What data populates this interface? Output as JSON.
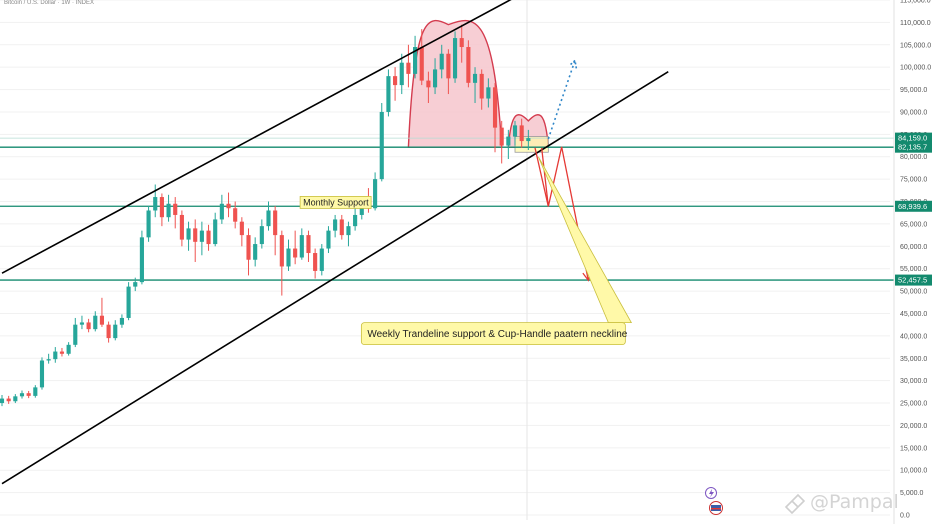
{
  "header": {
    "title": "Bitcoin / U.S. Dollar · 1W · INDEX"
  },
  "watermark": {
    "text": "@Pampal"
  },
  "colors": {
    "up": "#26a69a",
    "down": "#ef5350",
    "support_line": "#138a6e",
    "channel": "#000000",
    "cup_fill": "#f6c6cc",
    "cup_stroke": "#d43c4f",
    "projection_red": "#e53935",
    "projection_blue": "#2f86c8",
    "callout_fill": "#fff9a8",
    "callout_border": "#c9bf3d"
  },
  "chart_data": {
    "type": "candlestick",
    "ylim": [
      0,
      115000
    ],
    "x_range": [
      0,
      110
    ],
    "y_ticks": [
      {
        "value": 115000,
        "label": "115,000.0"
      },
      {
        "value": 110000,
        "label": "110,000.0"
      },
      {
        "value": 105000,
        "label": "105,000.0"
      },
      {
        "value": 100000,
        "label": "100,000.0"
      },
      {
        "value": 95000,
        "label": "95,000.0"
      },
      {
        "value": 90000,
        "label": "90,000.0"
      },
      {
        "value": 85000,
        "label": "85,000.0"
      },
      {
        "value": 80000,
        "label": "80,000.0"
      },
      {
        "value": 75000,
        "label": "75,000.0"
      },
      {
        "value": 70000,
        "label": "70,000.0"
      },
      {
        "value": 65000,
        "label": "65,000.0"
      },
      {
        "value": 60000,
        "label": "60,000.0"
      },
      {
        "value": 55000,
        "label": "55,000.0"
      },
      {
        "value": 50000,
        "label": "50,000.0"
      },
      {
        "value": 45000,
        "label": "45,000.0"
      },
      {
        "value": 40000,
        "label": "40,000.0"
      },
      {
        "value": 35000,
        "label": "35,000.0"
      },
      {
        "value": 30000,
        "label": "30,000.0"
      },
      {
        "value": 25000,
        "label": "25,000.0"
      },
      {
        "value": 20000,
        "label": "20,000.0"
      },
      {
        "value": 15000,
        "label": "15,000.0"
      },
      {
        "value": 10000,
        "label": "10,000.0"
      },
      {
        "value": 5000,
        "label": "5,000.0"
      },
      {
        "value": 0,
        "label": "0.0"
      }
    ],
    "price_tags": [
      {
        "value": 84159.0,
        "label": "84,159.0"
      },
      {
        "value": 82135.7,
        "label": "82,135.7"
      },
      {
        "value": 68939.6,
        "label": "68,939.6"
      },
      {
        "value": 52457.5,
        "label": "52,457.5"
      }
    ],
    "support_lines": [
      82135.7,
      68939.6,
      52457.5
    ],
    "channel_lines": [
      {
        "name": "upper-channel",
        "points": [
          [
            0,
            54000
          ],
          [
            80,
            118000
          ]
        ]
      },
      {
        "name": "lower-channel",
        "points": [
          [
            0,
            7000
          ],
          [
            100,
            99000
          ]
        ]
      }
    ],
    "candles": [
      {
        "x": 0,
        "open": 25000,
        "close": 26000,
        "high": 26800,
        "low": 24300
      },
      {
        "x": 1,
        "open": 26000,
        "close": 25400,
        "high": 26600,
        "low": 24800
      },
      {
        "x": 2,
        "open": 25400,
        "close": 26500,
        "high": 27000,
        "low": 25000
      },
      {
        "x": 3,
        "open": 26500,
        "close": 27200,
        "high": 27800,
        "low": 26000
      },
      {
        "x": 4,
        "open": 27200,
        "close": 26600,
        "high": 27700,
        "low": 26100
      },
      {
        "x": 5,
        "open": 26600,
        "close": 28500,
        "high": 29000,
        "low": 26200
      },
      {
        "x": 6,
        "open": 28500,
        "close": 34500,
        "high": 35200,
        "low": 28000
      },
      {
        "x": 7,
        "open": 34500,
        "close": 34800,
        "high": 36000,
        "low": 33800
      },
      {
        "x": 8,
        "open": 34800,
        "close": 36500,
        "high": 37500,
        "low": 34000
      },
      {
        "x": 9,
        "open": 36500,
        "close": 36000,
        "high": 37300,
        "low": 35400
      },
      {
        "x": 10,
        "open": 36000,
        "close": 38000,
        "high": 38600,
        "low": 35600
      },
      {
        "x": 11,
        "open": 38000,
        "close": 42500,
        "high": 44000,
        "low": 37500
      },
      {
        "x": 12,
        "open": 42500,
        "close": 43000,
        "high": 44500,
        "low": 41500
      },
      {
        "x": 13,
        "open": 43000,
        "close": 41500,
        "high": 43800,
        "low": 40800
      },
      {
        "x": 14,
        "open": 41500,
        "close": 44500,
        "high": 45500,
        "low": 41000
      },
      {
        "x": 15,
        "open": 44500,
        "close": 42500,
        "high": 48500,
        "low": 42000
      },
      {
        "x": 16,
        "open": 42500,
        "close": 39500,
        "high": 43200,
        "low": 38500
      },
      {
        "x": 17,
        "open": 39500,
        "close": 42500,
        "high": 43500,
        "low": 39000
      },
      {
        "x": 18,
        "open": 42500,
        "close": 44000,
        "high": 44800,
        "low": 41800
      },
      {
        "x": 19,
        "open": 44000,
        "close": 51000,
        "high": 52000,
        "low": 43500
      },
      {
        "x": 20,
        "open": 51000,
        "close": 52000,
        "high": 53000,
        "low": 50000
      },
      {
        "x": 21,
        "open": 52000,
        "close": 62000,
        "high": 63500,
        "low": 51500
      },
      {
        "x": 22,
        "open": 62000,
        "close": 68000,
        "high": 69000,
        "low": 61000
      },
      {
        "x": 23,
        "open": 68000,
        "close": 71000,
        "high": 73800,
        "low": 66500
      },
      {
        "x": 24,
        "open": 71000,
        "close": 66500,
        "high": 71800,
        "low": 64500
      },
      {
        "x": 25,
        "open": 66500,
        "close": 69500,
        "high": 71500,
        "low": 65500
      },
      {
        "x": 26,
        "open": 69500,
        "close": 67000,
        "high": 71000,
        "low": 64000
      },
      {
        "x": 27,
        "open": 67000,
        "close": 61500,
        "high": 68000,
        "low": 60000
      },
      {
        "x": 28,
        "open": 61500,
        "close": 64000,
        "high": 65500,
        "low": 59000
      },
      {
        "x": 29,
        "open": 64000,
        "close": 61000,
        "high": 66000,
        "low": 56500
      },
      {
        "x": 30,
        "open": 61000,
        "close": 63500,
        "high": 65500,
        "low": 58000
      },
      {
        "x": 31,
        "open": 63500,
        "close": 60500,
        "high": 64800,
        "low": 59000
      },
      {
        "x": 32,
        "open": 60500,
        "close": 66000,
        "high": 67500,
        "low": 60000
      },
      {
        "x": 33,
        "open": 66000,
        "close": 69500,
        "high": 71500,
        "low": 65000
      },
      {
        "x": 34,
        "open": 69500,
        "close": 68500,
        "high": 72000,
        "low": 66500
      },
      {
        "x": 35,
        "open": 68500,
        "close": 65500,
        "high": 70000,
        "low": 64000
      },
      {
        "x": 36,
        "open": 65500,
        "close": 62500,
        "high": 66500,
        "low": 60000
      },
      {
        "x": 37,
        "open": 62500,
        "close": 57000,
        "high": 64000,
        "low": 53500
      },
      {
        "x": 38,
        "open": 57000,
        "close": 60500,
        "high": 62000,
        "low": 55500
      },
      {
        "x": 39,
        "open": 60500,
        "close": 64500,
        "high": 66000,
        "low": 59500
      },
      {
        "x": 40,
        "open": 64500,
        "close": 68000,
        "high": 70000,
        "low": 63500
      },
      {
        "x": 41,
        "open": 68000,
        "close": 62500,
        "high": 69000,
        "low": 58000
      },
      {
        "x": 42,
        "open": 62500,
        "close": 55500,
        "high": 63500,
        "low": 49000
      },
      {
        "x": 43,
        "open": 55500,
        "close": 59500,
        "high": 61500,
        "low": 54500
      },
      {
        "x": 44,
        "open": 59500,
        "close": 57500,
        "high": 63500,
        "low": 56000
      },
      {
        "x": 45,
        "open": 57500,
        "close": 62500,
        "high": 64000,
        "low": 57000
      },
      {
        "x": 46,
        "open": 62500,
        "close": 58500,
        "high": 63500,
        "low": 56500
      },
      {
        "x": 47,
        "open": 58500,
        "close": 54500,
        "high": 59500,
        "low": 52800
      },
      {
        "x": 48,
        "open": 54500,
        "close": 59500,
        "high": 60500,
        "low": 53500
      },
      {
        "x": 49,
        "open": 59500,
        "close": 63500,
        "high": 64500,
        "low": 58500
      },
      {
        "x": 50,
        "open": 63500,
        "close": 66000,
        "high": 67000,
        "low": 62000
      },
      {
        "x": 51,
        "open": 66000,
        "close": 62500,
        "high": 67000,
        "low": 61500
      },
      {
        "x": 52,
        "open": 62500,
        "close": 64500,
        "high": 65500,
        "low": 60000
      },
      {
        "x": 53,
        "open": 64500,
        "close": 67000,
        "high": 68500,
        "low": 63500
      },
      {
        "x": 54,
        "open": 67000,
        "close": 69000,
        "high": 70500,
        "low": 66000
      },
      {
        "x": 55,
        "open": 69000,
        "close": 68500,
        "high": 73000,
        "low": 67500
      },
      {
        "x": 56,
        "open": 68500,
        "close": 75000,
        "high": 76500,
        "low": 68000
      },
      {
        "x": 57,
        "open": 75000,
        "close": 90000,
        "high": 92000,
        "low": 74500
      },
      {
        "x": 58,
        "open": 90000,
        "close": 98000,
        "high": 99500,
        "low": 89000
      },
      {
        "x": 59,
        "open": 98000,
        "close": 96000,
        "high": 100000,
        "low": 92500
      },
      {
        "x": 60,
        "open": 96000,
        "close": 101000,
        "high": 103000,
        "low": 94000
      },
      {
        "x": 61,
        "open": 101000,
        "close": 98500,
        "high": 105000,
        "low": 95500
      },
      {
        "x": 62,
        "open": 98500,
        "close": 104500,
        "high": 107000,
        "low": 97500
      },
      {
        "x": 63,
        "open": 104500,
        "close": 97000,
        "high": 108500,
        "low": 96000
      },
      {
        "x": 64,
        "open": 97000,
        "close": 95500,
        "high": 99000,
        "low": 92000
      },
      {
        "x": 65,
        "open": 95500,
        "close": 99500,
        "high": 102000,
        "low": 94000
      },
      {
        "x": 66,
        "open": 99500,
        "close": 103000,
        "high": 105000,
        "low": 97500
      },
      {
        "x": 67,
        "open": 103000,
        "close": 97500,
        "high": 104000,
        "low": 94000
      },
      {
        "x": 68,
        "open": 97500,
        "close": 106500,
        "high": 108000,
        "low": 96500
      },
      {
        "x": 69,
        "open": 106500,
        "close": 104500,
        "high": 109500,
        "low": 101000
      },
      {
        "x": 70,
        "open": 104500,
        "close": 96500,
        "high": 106000,
        "low": 95500
      },
      {
        "x": 71,
        "open": 96500,
        "close": 98500,
        "high": 100000,
        "low": 92000
      },
      {
        "x": 72,
        "open": 98500,
        "close": 93000,
        "high": 99500,
        "low": 90500
      },
      {
        "x": 73,
        "open": 93000,
        "close": 95500,
        "high": 97500,
        "low": 91000
      },
      {
        "x": 74,
        "open": 95500,
        "close": 86500,
        "high": 96500,
        "low": 81000
      },
      {
        "x": 75,
        "open": 86500,
        "close": 82500,
        "high": 88000,
        "low": 78500
      },
      {
        "x": 76,
        "open": 82500,
        "close": 84500,
        "high": 86000,
        "low": 79500
      },
      {
        "x": 77,
        "open": 84500,
        "close": 87000,
        "high": 88000,
        "low": 82500
      },
      {
        "x": 78,
        "open": 87000,
        "close": 83500,
        "high": 88500,
        "low": 82000
      },
      {
        "x": 79,
        "open": 83500,
        "close": 84159,
        "high": 86000,
        "low": 81500
      }
    ],
    "cup_handle": {
      "cup": {
        "start": [
          61,
          82135.7
        ],
        "peak": [
          67,
          109500
        ],
        "end": [
          75,
          82135.7
        ]
      },
      "handle": {
        "start": [
          76,
          82135.7
        ],
        "peak": [
          79,
          88000
        ],
        "end": [
          82,
          82135.7
        ]
      }
    },
    "neckline_box": {
      "x": [
        77,
        82
      ],
      "y": [
        81000,
        84500
      ]
    },
    "projections": {
      "red_path": [
        [
          81,
          82000
        ],
        [
          82,
          68900
        ],
        [
          84,
          82200
        ],
        [
          88,
          52400
        ]
      ],
      "red_path_2": [
        [
          80,
          82000
        ],
        [
          82,
          68900
        ]
      ],
      "blue_path": [
        [
          82,
          84000
        ],
        [
          86,
          101500
        ]
      ]
    },
    "annotations": [
      {
        "name": "monthly-support",
        "text": "Monthly Support",
        "x": 50,
        "y": 69800
      },
      {
        "name": "trendline-note",
        "text": "Weekly Trandeline support & Cup-Handle paatern neckline",
        "x": 73,
        "y": 40500,
        "pointer_to": [
          80.5,
          80000
        ]
      }
    ]
  }
}
